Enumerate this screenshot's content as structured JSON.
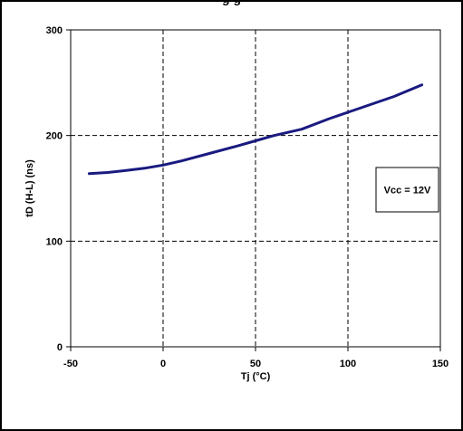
{
  "header": {
    "title": "g                                                   g"
  },
  "chart_data": {
    "type": "line",
    "xlabel": "Tj (°C)",
    "ylabel": "tD (H-L) (ns)",
    "xlim": [
      -50,
      150
    ],
    "ylim": [
      0,
      300
    ],
    "x_ticks": [
      -50,
      0,
      50,
      100,
      150
    ],
    "y_ticks": [
      0,
      100,
      200,
      300
    ],
    "x_tick_labels": [
      "-50",
      "0",
      "50",
      "100",
      "150"
    ],
    "y_tick_labels": [
      "0",
      "100",
      "200",
      "300"
    ],
    "grid": true,
    "grid_style": "dashed",
    "annotation": "Vcc = 12V",
    "annotation_placement": "right",
    "series": [
      {
        "color": "#1a1a80",
        "x": [
          -40,
          -30,
          -20,
          -10,
          0,
          10,
          25,
          40,
          50,
          60,
          75,
          90,
          100,
          110,
          125,
          140
        ],
        "y": [
          164,
          165,
          167,
          169,
          172,
          176,
          183,
          190,
          195,
          200,
          206,
          216,
          222,
          228,
          237,
          248
        ]
      }
    ]
  }
}
